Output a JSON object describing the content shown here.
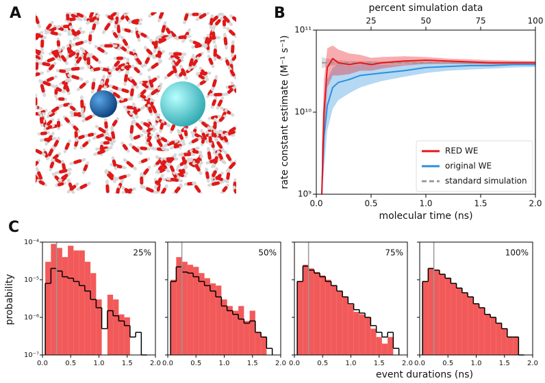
{
  "panel_labels": [
    "A",
    "B",
    "C"
  ],
  "panel_c": {
    "xlabel": "event durations (ns)",
    "ylabel": "probability"
  },
  "chart_data": [
    {
      "type": "line",
      "log_y": true,
      "xlabel": "molecular time (ns)",
      "ylabel": "rate constant estimate (M⁻¹ s⁻¹)",
      "x2label": "percent simulation data",
      "xlim": [
        0,
        2
      ],
      "xticks": [
        {
          "value": 0,
          "label": "0.0"
        },
        0.5,
        {
          "value": 1,
          "label": "1.0"
        },
        1.5,
        {
          "value": 2,
          "label": "2.0"
        }
      ],
      "x2lim": [
        0,
        100
      ],
      "x2ticks": [
        25,
        50,
        75,
        100
      ],
      "ylim": [
        1000000000,
        100000000000
      ],
      "yticks": [
        {
          "value": 1000000000,
          "label": "10⁹"
        },
        {
          "value": 10000000000,
          "label": "10¹⁰"
        },
        {
          "value": 100000000000,
          "label": "10¹¹"
        }
      ],
      "legend": "lower right",
      "x": [
        0.05,
        0.07,
        0.1,
        0.15,
        0.2,
        0.3,
        0.4,
        0.5,
        0.6,
        0.8,
        1.0,
        1.2,
        1.4,
        1.6,
        1.8,
        2.0
      ],
      "series": [
        {
          "name": "standard simulation",
          "color": "#999999",
          "dash": true,
          "values": [
            40000000000,
            40000000000,
            40000000000,
            40000000000,
            40000000000,
            40000000000,
            40000000000,
            40000000000,
            40000000000,
            40000000000,
            40000000000,
            40000000000,
            40000000000,
            40000000000,
            40000000000,
            40000000000
          ],
          "lower": [
            34000000000,
            35000000000,
            36000000000,
            37000000000,
            37000000000,
            38000000000,
            38000000000,
            38000000000,
            38500000000,
            38500000000,
            38500000000,
            39000000000,
            39000000000,
            39000000000,
            39000000000,
            39000000000
          ],
          "upper": [
            47000000000,
            46000000000,
            45000000000,
            44000000000,
            43000000000,
            42000000000,
            42000000000,
            42000000000,
            41500000000,
            41500000000,
            41500000000,
            41000000000,
            41000000000,
            41000000000,
            41000000000,
            41000000000
          ]
        },
        {
          "name": "original WE",
          "color": "#2b8fdc",
          "values": [
            1000000000,
            5000000000,
            12000000000,
            20000000000,
            23000000000,
            25000000000,
            28000000000,
            29000000000,
            30000000000,
            32000000000,
            35000000000,
            36000000000,
            37000000000,
            37000000000,
            38000000000,
            38000000000
          ],
          "lower": [
            1000000000,
            2000000000,
            6000000000,
            11000000000,
            14000000000,
            17000000000,
            20000000000,
            22000000000,
            24000000000,
            27000000000,
            30000000000,
            32000000000,
            33000000000,
            34000000000,
            35000000000,
            35500000000
          ],
          "upper": [
            3000000000,
            12000000000,
            25000000000,
            35000000000,
            38000000000,
            37000000000,
            38000000000,
            38000000000,
            38000000000,
            38000000000,
            40000000000,
            40000000000,
            41000000000,
            40500000000,
            41000000000,
            40500000000
          ]
        },
        {
          "name": "RED WE",
          "color": "#e8141c",
          "values": [
            1000000000,
            10000000000,
            35000000000,
            45000000000,
            40000000000,
            38000000000,
            40000000000,
            38000000000,
            40000000000,
            42000000000,
            43000000000,
            42000000000,
            41000000000,
            40000000000,
            40000000000,
            40000000000
          ],
          "lower": [
            1000000000,
            4000000000,
            20000000000,
            28000000000,
            28000000000,
            29000000000,
            32000000000,
            32000000000,
            34000000000,
            37000000000,
            39000000000,
            39000000000,
            38500000000,
            38000000000,
            38000000000,
            38500000000
          ],
          "upper": [
            4000000000,
            25000000000,
            60000000000,
            65000000000,
            58000000000,
            52000000000,
            50000000000,
            46000000000,
            47000000000,
            48000000000,
            47000000000,
            45000000000,
            44000000000,
            43000000000,
            42500000000,
            42000000000
          ]
        }
      ]
    },
    {
      "type": "histogram",
      "log_y": true,
      "title": "25%",
      "vline": 0.25,
      "vline_color": "#999999",
      "xlim": [
        0,
        2
      ],
      "xticks": [
        {
          "value": 0,
          "label": "0.0"
        },
        0.5,
        {
          "value": 1,
          "label": "1.0"
        },
        1.5,
        {
          "value": 2,
          "label": "2.0"
        }
      ],
      "ylim": [
        1e-07,
        0.0001
      ],
      "yticks": [
        {
          "value": 1e-07,
          "label": "10⁻⁷"
        },
        {
          "value": 1e-06,
          "label": "10⁻⁶"
        },
        {
          "value": 1e-05,
          "label": "10⁻⁵"
        },
        {
          "value": 0.0001,
          "label": "10⁻⁴"
        }
      ],
      "bins": [
        0.05,
        0.15,
        0.25,
        0.35,
        0.45,
        0.55,
        0.65,
        0.75,
        0.85,
        0.95,
        1.05,
        1.15,
        1.25,
        1.35,
        1.45,
        1.55,
        1.65,
        1.75,
        1.85
      ],
      "series": [
        {
          "style": "bar",
          "color": "#f25a5a",
          "values": [
            3e-05,
            9e-05,
            7e-05,
            4e-05,
            8e-05,
            6e-05,
            6e-05,
            3e-05,
            1.5e-05,
            3e-06,
            null,
            4e-06,
            3e-06,
            1.2e-06,
            1e-06,
            null,
            null,
            null
          ]
        },
        {
          "style": "step",
          "color": "#000000",
          "values": [
            8e-06,
            2e-05,
            1.7e-05,
            1.2e-05,
            1.1e-05,
            9e-06,
            7e-06,
            5e-06,
            3e-06,
            1.8e-06,
            5e-07,
            1.5e-06,
            1.1e-06,
            8e-07,
            6e-07,
            3e-07,
            4e-07,
            1e-07
          ]
        }
      ]
    },
    {
      "type": "histogram",
      "log_y": true,
      "title": "50%",
      "vline": 0.25,
      "vline_color": "#999999",
      "xlim": [
        0,
        2
      ],
      "xticks": [
        {
          "value": 0,
          "label": "0.0"
        },
        0.5,
        {
          "value": 1,
          "label": "1.0"
        },
        1.5,
        {
          "value": 2,
          "label": "2.0"
        }
      ],
      "ylim": [
        1e-07,
        0.0001
      ],
      "yticks": [
        1e-07,
        1e-06,
        1e-05,
        0.0001
      ],
      "bins": [
        0.05,
        0.15,
        0.25,
        0.35,
        0.45,
        0.55,
        0.65,
        0.75,
        0.85,
        0.95,
        1.05,
        1.15,
        1.25,
        1.35,
        1.45,
        1.55,
        1.65,
        1.75,
        1.85
      ],
      "series": [
        {
          "style": "bar",
          "color": "#f25a5a",
          "values": [
            1e-05,
            4e-05,
            3e-05,
            2.5e-05,
            2.2e-05,
            1.5e-05,
            1.1e-05,
            8e-06,
            7e-06,
            3e-06,
            2e-06,
            1.5e-06,
            2e-06,
            8e-07,
            1.5e-06,
            4e-07,
            3e-07,
            null
          ]
        },
        {
          "style": "step",
          "color": "#000000",
          "values": [
            9e-06,
            2.2e-05,
            1.6e-05,
            1.5e-05,
            1.2e-05,
            9e-06,
            7e-06,
            5e-06,
            3.5e-06,
            2e-06,
            1.5e-06,
            1.2e-06,
            9e-07,
            7e-07,
            8e-07,
            4e-07,
            3e-07,
            1.5e-07
          ]
        }
      ]
    },
    {
      "type": "histogram",
      "log_y": true,
      "title": "75%",
      "vline": 0.25,
      "vline_color": "#999999",
      "xlim": [
        0,
        2
      ],
      "xticks": [
        {
          "value": 0,
          "label": "0.0"
        },
        0.5,
        {
          "value": 1,
          "label": "1.0"
        },
        1.5,
        {
          "value": 2,
          "label": "2.0"
        }
      ],
      "ylim": [
        1e-07,
        0.0001
      ],
      "yticks": [
        1e-07,
        1e-06,
        1e-05,
        0.0001
      ],
      "bins": [
        0.05,
        0.15,
        0.25,
        0.35,
        0.45,
        0.55,
        0.65,
        0.75,
        0.85,
        0.95,
        1.05,
        1.15,
        1.25,
        1.35,
        1.45,
        1.55,
        1.65,
        1.75,
        1.85
      ],
      "series": [
        {
          "style": "bar",
          "color": "#f25a5a",
          "values": [
            9e-06,
            2.5e-05,
            2e-05,
            1.6e-05,
            1.3e-05,
            1e-05,
            7e-06,
            5e-06,
            3.5e-06,
            2.2e-06,
            1.4e-06,
            1.2e-06,
            1e-06,
            5e-07,
            3e-07,
            2e-07,
            3e-07,
            null
          ]
        },
        {
          "style": "step",
          "color": "#000000",
          "values": [
            9e-06,
            2.3e-05,
            1.8e-05,
            1.5e-05,
            1.2e-05,
            9e-06,
            7e-06,
            5e-06,
            3.5e-06,
            2.3e-06,
            1.6e-06,
            1.3e-06,
            1e-06,
            6e-07,
            4e-07,
            3e-07,
            4e-07,
            1.5e-07
          ]
        }
      ]
    },
    {
      "type": "histogram",
      "log_y": true,
      "title": "100%",
      "vline": 0.25,
      "vline_color": "#999999",
      "xlim": [
        0,
        2
      ],
      "xticks": [
        {
          "value": 0,
          "label": "0.0"
        },
        0.5,
        {
          "value": 1,
          "label": "1.0"
        },
        1.5,
        {
          "value": 2,
          "label": "2.0"
        }
      ],
      "ylim": [
        1e-07,
        0.0001
      ],
      "yticks": [
        1e-07,
        1e-06,
        1e-05,
        0.0001
      ],
      "bins": [
        0.05,
        0.15,
        0.25,
        0.35,
        0.45,
        0.55,
        0.65,
        0.75,
        0.85,
        0.95,
        1.05,
        1.15,
        1.25,
        1.35,
        1.45,
        1.55,
        1.65,
        1.75,
        1.85
      ],
      "series": [
        {
          "style": "bar",
          "color": "#f25a5a",
          "values": [
            9e-06,
            2e-05,
            1.8e-05,
            1.4e-05,
            1.1e-05,
            8e-06,
            6e-06,
            4.5e-06,
            3.5e-06,
            2.3e-06,
            1.8e-06,
            1.2e-06,
            1e-06,
            7e-07,
            5e-07,
            3e-07,
            3e-07,
            1e-07
          ]
        },
        {
          "style": "step",
          "color": "#000000",
          "values": [
            9e-06,
            2e-05,
            1.8e-05,
            1.4e-05,
            1.1e-05,
            8e-06,
            6e-06,
            4.5e-06,
            3.5e-06,
            2.3e-06,
            1.8e-06,
            1.2e-06,
            1e-06,
            7e-07,
            5e-07,
            3e-07,
            3e-07,
            1e-07
          ]
        }
      ]
    }
  ]
}
